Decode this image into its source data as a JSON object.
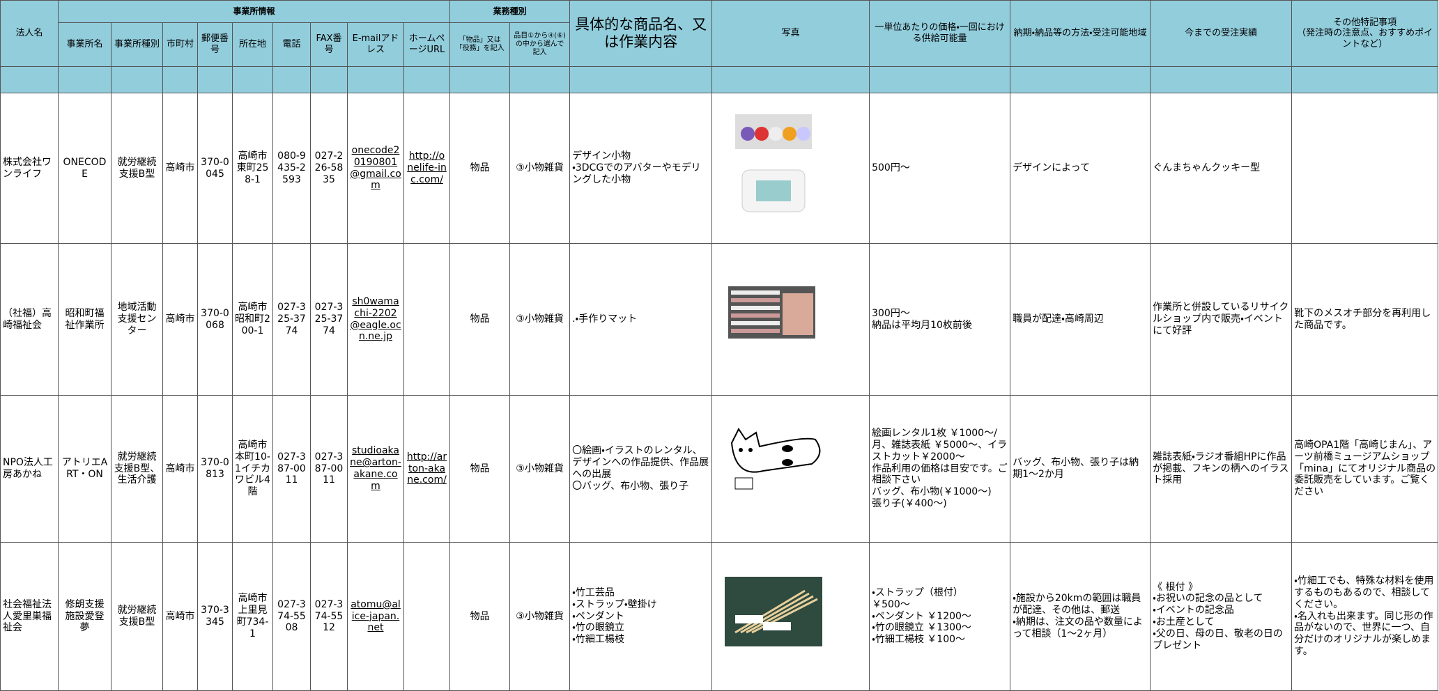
{
  "header": {
    "corp": "法人名",
    "office_info": "事業所情報",
    "business_type": "業務種別",
    "content": "具体的な商品名、又は作業内容",
    "photo": "写真",
    "price": "一単位あたりの価格・一回における供給可能量",
    "delivery": "納期・納品等の方法・受注可能地域",
    "record": "今までの受注実績",
    "notes": "その他特記事項\n（発注時の注意点、おすすめポイントなど）",
    "sub": [
      "事業所名",
      "事業所種別",
      "市町村",
      "郵便番号",
      "所在地",
      "電話",
      "FAX番号",
      "E-mailアドレス",
      "ホームページURL",
      "「物品」又は「役務」を記入",
      "品目①から④(⑥)の中から選んで記入"
    ]
  },
  "table": {
    "rows": [
      {
        "corp": "株式会社ワンライフ",
        "office": "ONECODE",
        "office_type": "就労継続支援B型",
        "city": "高崎市",
        "postal": "370-0045",
        "address": "高崎市東町258-1",
        "tel": "080-9435-2593",
        "fax": "027-226-5835",
        "email": "onecode20190801@gmail.com",
        "url": "http://onelife-inc.com/",
        "category": "物品",
        "item": "③小物雑貨",
        "content": "デザイン小物\n・3DCGでのアバターやモデリングした小物",
        "price": "500円～",
        "delivery": "デザインによって",
        "record": "ぐんまちゃんクッキー型"
      },
      {
        "corp": "（社福）高崎福祉会",
        "office": "昭和町福祉作業所",
        "office_type": "地域活動支援センター",
        "city": "高崎市",
        "postal": "370-0068",
        "address": "高崎市昭和町200-1",
        "tel": "027-325-3774",
        "fax": "027-325-3774",
        "email": "sh0wamachi-2202@eagle.ocn.ne.jp",
        "category": "物品",
        "item": "③小物雑貨",
        "content": ".・手作りマット",
        "price": "300円～\n納品は平均月10枚前後",
        "delivery": "職員が配達・高崎周辺",
        "record": "作業所と併設しているリサイクルショップ内で販売・イベントにて好評",
        "notes": "靴下のメスオチ部分を再利用した商品です。"
      },
      {
        "corp": "NPO法人工房あかね",
        "office": "アトリエART・ON",
        "office_type": "就労継続支援B型、生活介護",
        "city": "高崎市",
        "postal": "370-0813",
        "address": "高崎市本町10-1イチカワビル4階",
        "tel": "027-387-0011",
        "fax": "027-387-0011",
        "email": "studioakane@arton-akane.com",
        "url": "http://arton-akane.com/",
        "category": "物品",
        "item": "③小物雑貨",
        "content": "〇絵画・イラストのレンタル、デザインへの作品提供、作品展への出展\n〇バッグ、布小物、張り子",
        "price": "絵画レンタル1枚 ￥1000～/月、雑誌表紙 ￥5000～、イラストカット￥2000～\n作品利用の価格は目安です。ご相談下さい\nバッグ、布小物(￥1000～)\n張り子(￥400～)",
        "delivery": "バッグ、布小物、張り子は納期1～2か月",
        "record": "雑誌表紙・ラジオ番組HPに作品が掲載、フキンの柄へのイラスト採用",
        "notes": "高崎OPA1階「高崎じまん」、アーツ前橋ミュージアムショップ「mina」にてオリジナル商品の委託販売をしています。ご覧ください"
      },
      {
        "corp": "社会福祉法人愛里巣福祉会",
        "office": "修朗支援施設愛登夢",
        "office_type": "就労継続支援B型",
        "city": "高崎市",
        "postal": "370-3345",
        "address": "高崎市上里見町734-1",
        "tel": "027-374-5508",
        "fax": "027-374-5512",
        "email": "atomu@alice-japan.net",
        "category": "物品",
        "item": "③小物雑貨",
        "content": "・竹工芸品\n・ストラップ・壁掛け\n・ペンダント\n・竹の眼鏡立\n・竹細工楊枝",
        "price": "・ストラップ（根付）\n ￥500～\n・ペンダント ￥1200～\n・竹の眼鏡立 ￥1300～\n・竹細工楊枝 ￥100～",
        "delivery": "・施設から20kmの範囲は職員が配達、その他は、郵送\n・納期は、注文の品や数量によって相談（1～2ヶ月）",
        "record": "《 根付 》\n・お祝いの記念の品として\n・イベントの記念品\n・お土産として\n・父の日、母の日、敬老の日のプレゼント",
        "notes": "・竹細工でも、特殊な材料を使用するものもあるので、相談してください。\n・名入れも出来ます。同じ形の作品がないので、世界に一つ、自分だけのオリジナルが楽しめます。"
      }
    ]
  }
}
